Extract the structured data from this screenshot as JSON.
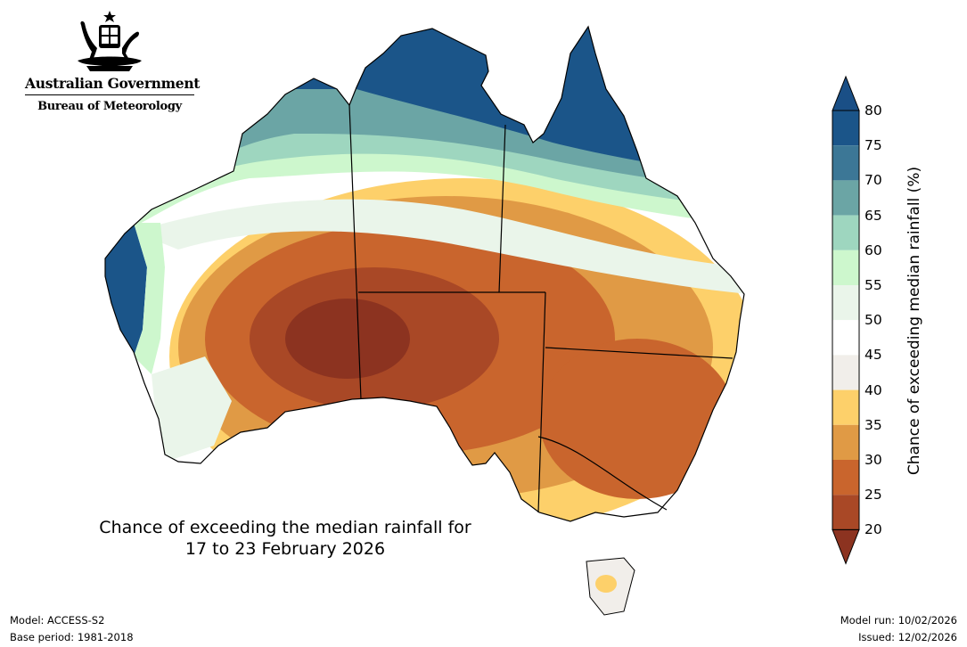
{
  "header": {
    "government": "Australian Government",
    "agency": "Bureau of Meteorology"
  },
  "map": {
    "title_line1": "Chance of exceeding the median rainfall for",
    "title_line2": "17 to 23 February 2026",
    "region": "Australia",
    "regions": [
      {
        "id": "north",
        "probability": "75-80"
      },
      {
        "id": "queensland-east-coast",
        "probability": "75-80"
      },
      {
        "id": "top-end",
        "probability": "70-80"
      },
      {
        "id": "kimberley",
        "probability": "65-75"
      },
      {
        "id": "western-wa-coast",
        "probability": "75-80"
      },
      {
        "id": "central-band",
        "probability": "45-60"
      },
      {
        "id": "inland-west",
        "probability": "30-40"
      },
      {
        "id": "central-south",
        "probability": "20-30"
      },
      {
        "id": "nsw-vic",
        "probability": "25-35"
      },
      {
        "id": "tasmania",
        "probability": "40-50"
      }
    ]
  },
  "colorbar": {
    "label": "Chance of exceeding median rainfall (%)",
    "ticks": [
      "80",
      "75",
      "70",
      "65",
      "60",
      "55",
      "50",
      "45",
      "40",
      "35",
      "30",
      "25",
      "20"
    ],
    "colors": {
      "above_80": "#1a4f86",
      "75_80": "#1b5589",
      "70_75": "#3c7796",
      "65_70": "#6ba5a5",
      "60_65": "#9ed6bf",
      "55_60": "#cdf7cd",
      "50_55": "#eaf5ea",
      "45_50": "#ffffff",
      "40_45": "#f1eeea",
      "35_40": "#fdd06a",
      "30_35": "#e09a45",
      "25_30": "#c9652d",
      "20_25": "#a94826",
      "below_20": "#8c3320"
    }
  },
  "footer": {
    "model": "Model: ACCESS-S2",
    "base_period": "Base period: 1981-2018",
    "model_run": "Model run: 10/02/2026",
    "issued": "Issued: 12/02/2026"
  }
}
